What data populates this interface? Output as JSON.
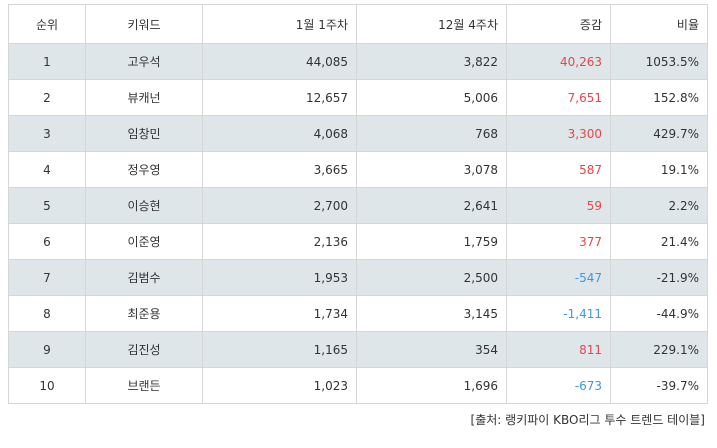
{
  "table": {
    "headers": [
      "순위",
      "키워드",
      "1월 1주차",
      "12월 4주차",
      "증감",
      "비율"
    ],
    "rows": [
      {
        "rank": "1",
        "keyword": "고우석",
        "jan_w1": "44,085",
        "dec_w4": "3,822",
        "change": "40,263",
        "ratio": "1053.5%",
        "direction": "up"
      },
      {
        "rank": "2",
        "keyword": "뷰캐넌",
        "jan_w1": "12,657",
        "dec_w4": "5,006",
        "change": "7,651",
        "ratio": "152.8%",
        "direction": "up"
      },
      {
        "rank": "3",
        "keyword": "임창민",
        "jan_w1": "4,068",
        "dec_w4": "768",
        "change": "3,300",
        "ratio": "429.7%",
        "direction": "up"
      },
      {
        "rank": "4",
        "keyword": "정우영",
        "jan_w1": "3,665",
        "dec_w4": "3,078",
        "change": "587",
        "ratio": "19.1%",
        "direction": "up"
      },
      {
        "rank": "5",
        "keyword": "이승현",
        "jan_w1": "2,700",
        "dec_w4": "2,641",
        "change": "59",
        "ratio": "2.2%",
        "direction": "up"
      },
      {
        "rank": "6",
        "keyword": "이준영",
        "jan_w1": "2,136",
        "dec_w4": "1,759",
        "change": "377",
        "ratio": "21.4%",
        "direction": "up"
      },
      {
        "rank": "7",
        "keyword": "김범수",
        "jan_w1": "1,953",
        "dec_w4": "2,500",
        "change": "-547",
        "ratio": "-21.9%",
        "direction": "down"
      },
      {
        "rank": "8",
        "keyword": "최준용",
        "jan_w1": "1,734",
        "dec_w4": "3,145",
        "change": "-1,411",
        "ratio": "-44.9%",
        "direction": "down"
      },
      {
        "rank": "9",
        "keyword": "김진성",
        "jan_w1": "1,165",
        "dec_w4": "354",
        "change": "811",
        "ratio": "229.1%",
        "direction": "up"
      },
      {
        "rank": "10",
        "keyword": "브랜든",
        "jan_w1": "1,023",
        "dec_w4": "1,696",
        "change": "-673",
        "ratio": "-39.7%",
        "direction": "down"
      }
    ]
  },
  "colors": {
    "increase": "#e0484b",
    "decrease": "#3d9ad8",
    "row_shade": "#dee6ea"
  },
  "source": "[출처: 랭키파이 KBO리그 투수 트렌드 테이블]"
}
